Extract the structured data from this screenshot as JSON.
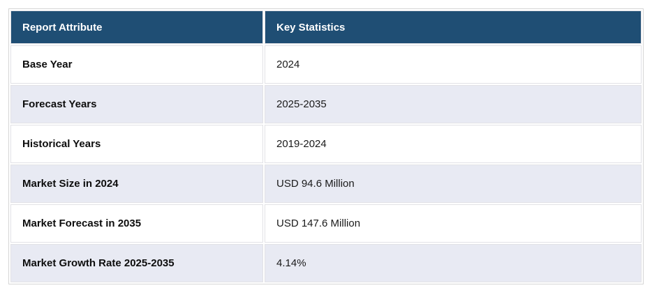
{
  "table": {
    "title": "report-key-statistics",
    "columns": [
      {
        "label": "Report Attribute"
      },
      {
        "label": "Key Statistics"
      }
    ],
    "rows": [
      {
        "attribute": "Base Year",
        "value": "2024"
      },
      {
        "attribute": "Forecast Years",
        "value": "2025-2035"
      },
      {
        "attribute": "Historical Years",
        "value": "2019-2024"
      },
      {
        "attribute": "Market Size in 2024",
        "value": "USD 94.6 Million"
      },
      {
        "attribute": "Market Forecast in 2035",
        "value": "USD 147.6 Million"
      },
      {
        "attribute": "Market Growth Rate 2025-2035",
        "value": "4.14%"
      }
    ],
    "colors": {
      "header_bg": "#1F4E74",
      "header_text": "#FFFFFF",
      "row_bg": "#FFFFFF",
      "row_alt_bg": "#E8EAF3",
      "border": "#D6D6D6",
      "cell_border": "#E2E2E6",
      "attribute_text": "#0D0D0D",
      "value_text": "#1A1A1A"
    }
  }
}
